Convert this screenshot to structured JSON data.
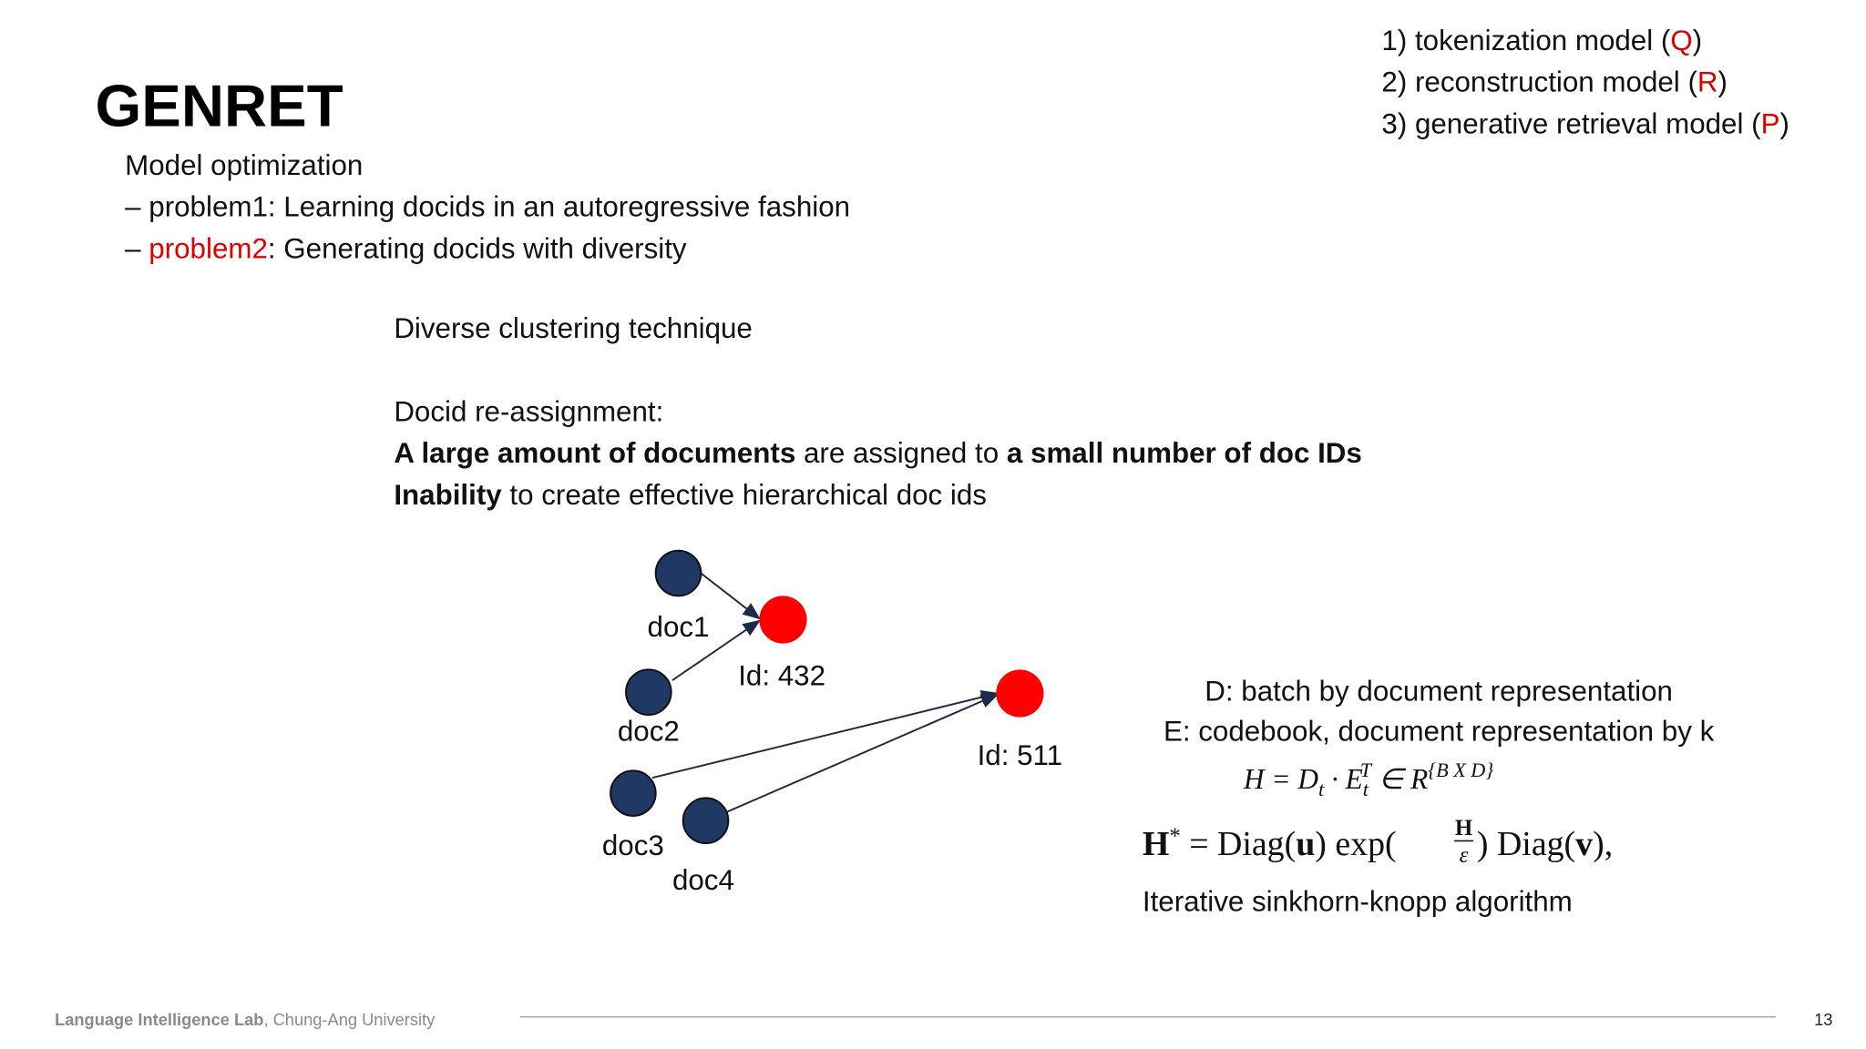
{
  "header": {
    "title": "GENRET"
  },
  "components": [
    {
      "label": "1) tokenization model (",
      "symbol": "Q",
      "close": ")"
    },
    {
      "label": "2) reconstruction model (",
      "symbol": "R",
      "close": ")"
    },
    {
      "label": "3) generative retrieval model (",
      "symbol": "P",
      "close": ")"
    }
  ],
  "body": {
    "heading": "Model optimization",
    "problems": [
      {
        "dash": "– ",
        "name": "problem1",
        "text": ": Learning docids in an autoregressive fashion"
      },
      {
        "dash": "– ",
        "name": "problem2",
        "text": ": Generating docids with diversity"
      }
    ],
    "technique": "Diverse clustering technique",
    "reassignment": {
      "heading": "Docid re-assignment:",
      "line1": [
        "A large amount of documents",
        " are assigned to ",
        "a small number of doc IDs"
      ],
      "line2": [
        "Inability",
        " to create effective hierarchical doc ids"
      ]
    }
  },
  "diagram": {
    "nodes": [
      "doc1",
      "doc2",
      "doc3",
      "doc4"
    ],
    "ids": [
      "Id: 432",
      "Id: 511"
    ]
  },
  "explanation": {
    "d": "D: batch by document representation",
    "e": "E: codebook, document representation by k",
    "formula1": [
      "H = D",
      "t",
      " · E",
      "t",
      "T",
      " ∈ R",
      "{B X D}"
    ],
    "formula2": [
      "H",
      "*",
      " = Diag(",
      "u",
      ") exp(",
      "H",
      "ε",
      ") Diag(",
      "v",
      "),"
    ],
    "note": "Iterative sinkhorn-knopp algorithm"
  },
  "footer": {
    "lab": "Language Intelligence Lab",
    "university": ", Chung-Ang University",
    "page": "13"
  }
}
